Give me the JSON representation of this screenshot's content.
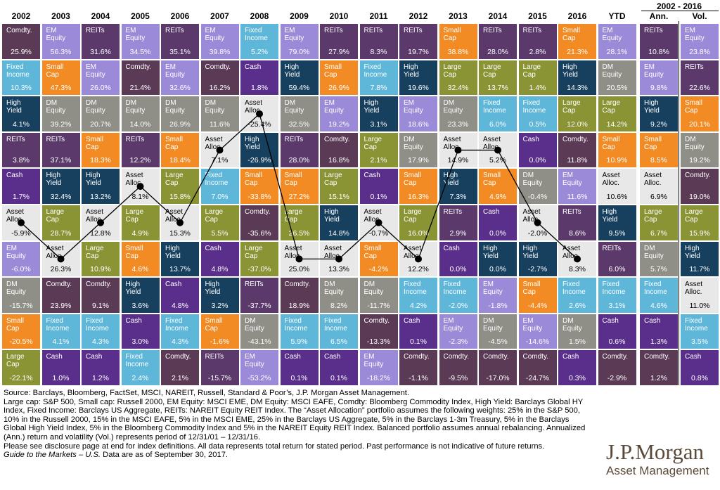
{
  "colors": {
    "Comdty.": "#5b3a55",
    "EM Equity": "#9b8ad8",
    "REITs": "#5b3a6b",
    "Fixed Income": "#5eb6d9",
    "Small Cap": "#f28b24",
    "High Yield": "#17405e",
    "DM Equity": "#8f8f88",
    "Cash": "#5a2f8c",
    "Large Cap": "#8a9435",
    "Asset Alloc.": "#e8e8e8"
  },
  "labels": {
    "Comdty.": "Comdty.",
    "EM Equity": "EM\nEquity",
    "REITs": "REITs",
    "Fixed Income": "Fixed\nIncome",
    "Small Cap": "Small\nCap",
    "High Yield": "High\nYield",
    "DM Equity": "DM\nEquity",
    "Cash": "Cash",
    "Large Cap": "Large\nCap",
    "Asset Alloc.": "Asset\nAlloc."
  },
  "header": {
    "range_label": "2002 - 2016",
    "columns": [
      "2002",
      "2003",
      "2004",
      "2005",
      "2006",
      "2007",
      "2008",
      "2009",
      "2010",
      "2011",
      "2012",
      "2013",
      "2014",
      "2015",
      "2016",
      "YTD",
      "Ann.",
      "Vol."
    ]
  },
  "chart_data": {
    "type": "table",
    "title": "",
    "columns": [
      "2002",
      "2003",
      "2004",
      "2005",
      "2006",
      "2007",
      "2008",
      "2009",
      "2010",
      "2011",
      "2012",
      "2013",
      "2014",
      "2015",
      "2016",
      "YTD",
      "Ann.",
      "Vol."
    ],
    "cells": [
      [
        [
          "Comdty.",
          "25.9%"
        ],
        [
          "Fixed Income",
          "10.3%"
        ],
        [
          "High Yield",
          "4.1%"
        ],
        [
          "REITs",
          "3.8%"
        ],
        [
          "Cash",
          "1.7%"
        ],
        [
          "Asset Alloc.",
          "-5.9%"
        ],
        [
          "EM Equity",
          "-6.0%"
        ],
        [
          "DM Equity",
          "-15.7%"
        ],
        [
          "Small Cap",
          "-20.5%"
        ],
        [
          "Large Cap",
          "-22.1%"
        ]
      ],
      [
        [
          "EM Equity",
          "56.3%"
        ],
        [
          "Small Cap",
          "47.3%"
        ],
        [
          "DM Equity",
          "39.2%"
        ],
        [
          "REITs",
          "37.1%"
        ],
        [
          "High Yield",
          "32.4%"
        ],
        [
          "Large Cap",
          "28.7%"
        ],
        [
          "Asset Alloc.",
          "26.3%"
        ],
        [
          "Comdty.",
          "23.9%"
        ],
        [
          "Fixed Income",
          "4.1%"
        ],
        [
          "Cash",
          "1.0%"
        ]
      ],
      [
        [
          "REITs",
          "31.6%"
        ],
        [
          "EM Equity",
          "26.0%"
        ],
        [
          "DM Equity",
          "20.7%"
        ],
        [
          "Small Cap",
          "18.3%"
        ],
        [
          "High Yield",
          "13.2%"
        ],
        [
          "Asset Alloc.",
          "12.8%"
        ],
        [
          "Large Cap",
          "10.9%"
        ],
        [
          "Comdty.",
          "9.1%"
        ],
        [
          "Fixed Income",
          "4.3%"
        ],
        [
          "Cash",
          "1.2%"
        ]
      ],
      [
        [
          "EM Equity",
          "34.5%"
        ],
        [
          "Comdty.",
          "21.4%"
        ],
        [
          "DM Equity",
          "14.0%"
        ],
        [
          "REITs",
          "12.2%"
        ],
        [
          "Asset Alloc.",
          "8.1%"
        ],
        [
          "Large Cap",
          "4.9%"
        ],
        [
          "Small Cap",
          "4.6%"
        ],
        [
          "High Yield",
          "3.6%"
        ],
        [
          "Cash",
          "3.0%"
        ],
        [
          "Fixed Income",
          "2.4%"
        ]
      ],
      [
        [
          "REITs",
          "35.1%"
        ],
        [
          "EM Equity",
          "32.6%"
        ],
        [
          "DM Equity",
          "26.9%"
        ],
        [
          "Small Cap",
          "18.4%"
        ],
        [
          "Large Cap",
          "15.8%"
        ],
        [
          "Asset Alloc.",
          "15.3%"
        ],
        [
          "High Yield",
          "13.7%"
        ],
        [
          "Cash",
          "4.8%"
        ],
        [
          "Fixed Income",
          "4.3%"
        ],
        [
          "Comdty.",
          "2.1%"
        ]
      ],
      [
        [
          "EM Equity",
          "39.8%"
        ],
        [
          "Comdty.",
          "16.2%"
        ],
        [
          "DM Equity",
          "11.6%"
        ],
        [
          "Asset Alloc.",
          "7.1%"
        ],
        [
          "Fixed Income",
          "7.0%"
        ],
        [
          "Large Cap",
          "5.5%"
        ],
        [
          "Cash",
          "4.8%"
        ],
        [
          "High Yield",
          "3.2%"
        ],
        [
          "Small Cap",
          "-1.6%"
        ],
        [
          "REITs",
          "-15.7%"
        ]
      ],
      [
        [
          "Fixed Income",
          "5.2%"
        ],
        [
          "Cash",
          "1.8%"
        ],
        [
          "Asset Alloc.",
          "-25.4%"
        ],
        [
          "High Yield",
          "-26.9%"
        ],
        [
          "Small Cap",
          "-33.8%"
        ],
        [
          "Comdty.",
          "-35.6%"
        ],
        [
          "Large Cap",
          "-37.0%"
        ],
        [
          "REITs",
          "-37.7%"
        ],
        [
          "DM Equity",
          "-43.1%"
        ],
        [
          "EM Equity",
          "-53.2%"
        ]
      ],
      [
        [
          "EM Equity",
          "79.0%"
        ],
        [
          "High Yield",
          "59.4%"
        ],
        [
          "DM Equity",
          "32.5%"
        ],
        [
          "REITs",
          "28.0%"
        ],
        [
          "Small Cap",
          "27.2%"
        ],
        [
          "Large Cap",
          "26.5%"
        ],
        [
          "Asset Alloc.",
          "25.0%"
        ],
        [
          "Comdty.",
          "18.9%"
        ],
        [
          "Fixed Income",
          "5.9%"
        ],
        [
          "Cash",
          "0.1%"
        ]
      ],
      [
        [
          "REITs",
          "27.9%"
        ],
        [
          "Small Cap",
          "26.9%"
        ],
        [
          "EM Equity",
          "19.2%"
        ],
        [
          "Comdty.",
          "16.8%"
        ],
        [
          "Large Cap",
          "15.1%"
        ],
        [
          "High Yield",
          "14.8%"
        ],
        [
          "Asset Alloc.",
          "13.3%"
        ],
        [
          "DM Equity",
          "8.2%"
        ],
        [
          "Fixed Income",
          "6.5%"
        ],
        [
          "Cash",
          "0.1%"
        ]
      ],
      [
        [
          "REITs",
          "8.3%"
        ],
        [
          "Fixed Income",
          "7.8%"
        ],
        [
          "High Yield",
          "3.1%"
        ],
        [
          "Large Cap",
          "2.1%"
        ],
        [
          "Cash",
          "0.1%"
        ],
        [
          "Asset Alloc.",
          "-0.7%"
        ],
        [
          "Small Cap",
          "-4.2%"
        ],
        [
          "DM Equity",
          "-11.7%"
        ],
        [
          "Comdty.",
          "-13.3%"
        ],
        [
          "EM Equity",
          "-18.2%"
        ]
      ],
      [
        [
          "REITs",
          "19.7%"
        ],
        [
          "High Yield",
          "19.6%"
        ],
        [
          "EM Equity",
          "18.6%"
        ],
        [
          "DM Equity",
          "17.9%"
        ],
        [
          "Small Cap",
          "16.3%"
        ],
        [
          "Large Cap",
          "16.0%"
        ],
        [
          "Asset Alloc.",
          "12.2%"
        ],
        [
          "Fixed Income",
          "4.2%"
        ],
        [
          "Cash",
          "0.1%"
        ],
        [
          "Comdty.",
          "-1.1%"
        ]
      ],
      [
        [
          "Small Cap",
          "38.8%"
        ],
        [
          "Large Cap",
          "32.4%"
        ],
        [
          "DM Equity",
          "23.3%"
        ],
        [
          "Asset Alloc.",
          "14.9%"
        ],
        [
          "High Yield",
          "7.3%"
        ],
        [
          "REITs",
          "2.9%"
        ],
        [
          "Cash",
          "0.0%"
        ],
        [
          "Fixed Income",
          "-2.0%"
        ],
        [
          "EM Equity",
          "-2.3%"
        ],
        [
          "Comdty.",
          "-9.5%"
        ]
      ],
      [
        [
          "REITs",
          "28.0%"
        ],
        [
          "Large Cap",
          "13.7%"
        ],
        [
          "Fixed Income",
          "6.0%"
        ],
        [
          "Asset Alloc.",
          "5.2%"
        ],
        [
          "Small Cap",
          "4.9%"
        ],
        [
          "Cash",
          "0.0%"
        ],
        [
          "High Yield",
          "0.0%"
        ],
        [
          "EM Equity",
          "-1.8%"
        ],
        [
          "DM Equity",
          "-4.5%"
        ],
        [
          "Comdty.",
          "-17.0%"
        ]
      ],
      [
        [
          "REITs",
          "2.8%"
        ],
        [
          "Large Cap",
          "1.4%"
        ],
        [
          "Fixed Income",
          "0.5%"
        ],
        [
          "Cash",
          "0.0%"
        ],
        [
          "DM Equity",
          "-0.4%"
        ],
        [
          "Asset Alloc.",
          "-2.0%"
        ],
        [
          "High Yield",
          "-2.7%"
        ],
        [
          "Small Cap",
          "-4.4%"
        ],
        [
          "EM Equity",
          "-14.6%"
        ],
        [
          "Comdty.",
          "-24.7%"
        ]
      ],
      [
        [
          "Small Cap",
          "21.3%"
        ],
        [
          "High Yield",
          "14.3%"
        ],
        [
          "Large Cap",
          "12.0%"
        ],
        [
          "Comdty.",
          "11.8%"
        ],
        [
          "EM Equity",
          "11.6%"
        ],
        [
          "REITs",
          "8.6%"
        ],
        [
          "Asset Alloc.",
          "8.3%"
        ],
        [
          "Fixed Income",
          "2.6%"
        ],
        [
          "DM Equity",
          "1.5%"
        ],
        [
          "Cash",
          "0.3%"
        ]
      ],
      [
        [
          "EM Equity",
          "28.1%"
        ],
        [
          "DM Equity",
          "20.5%"
        ],
        [
          "Large Cap",
          "14.2%"
        ],
        [
          "Small Cap",
          "10.9%"
        ],
        [
          "Asset Alloc.",
          "10.6%"
        ],
        [
          "High Yield",
          "9.5%"
        ],
        [
          "REITs",
          "6.0%"
        ],
        [
          "Fixed Income",
          "3.1%"
        ],
        [
          "Cash",
          "0.6%"
        ],
        [
          "Comdty.",
          "-2.9%"
        ]
      ],
      [
        [
          "REITs",
          "10.8%"
        ],
        [
          "EM Equity",
          "9.8%"
        ],
        [
          "High Yield",
          "9.2%"
        ],
        [
          "Small Cap",
          "8.5%"
        ],
        [
          "Asset Alloc.",
          "6.9%"
        ],
        [
          "Large Cap",
          "6.7%"
        ],
        [
          "DM Equity",
          "5.7%"
        ],
        [
          "Fixed Income",
          "4.6%"
        ],
        [
          "Cash",
          "1.3%"
        ],
        [
          "Comdty.",
          "1.2%"
        ]
      ],
      [
        [
          "EM Equity",
          "23.8%"
        ],
        [
          "REITs",
          "22.6%"
        ],
        [
          "Small Cap",
          "20.1%"
        ],
        [
          "DM Equity",
          "19.2%"
        ],
        [
          "Comdty.",
          "19.0%"
        ],
        [
          "Large Cap",
          "15.9%"
        ],
        [
          "High Yield",
          "11.7%"
        ],
        [
          "Asset Alloc.",
          "11.0%"
        ],
        [
          "Fixed Income",
          "3.5%"
        ],
        [
          "Cash",
          "0.8%"
        ]
      ]
    ],
    "line_series": {
      "asset": "Asset Alloc.",
      "x": [
        "2002",
        "2003",
        "2004",
        "2005",
        "2006",
        "2007",
        "2008",
        "2009",
        "2010",
        "2011",
        "2012",
        "2013",
        "2014",
        "2015",
        "2016"
      ],
      "rank": [
        6,
        7,
        6,
        5,
        6,
        4,
        3,
        7,
        7,
        6,
        7,
        4,
        4,
        6,
        7
      ]
    }
  },
  "footer": {
    "line1": "Source: Barclays, Bloomberg, FactSet, MSCI, NAREIT, Russell, Standard & Poor’s, J.P. Morgan Asset Management.",
    "line2": "Large cap: S&P 500, Small cap: Russell 2000, EM Equity: MSCI EME, DM Equity: MSCI EAFE, Comdty: Bloomberg Commodity Index, High Yield: Barclays Global HY Index, Fixed Income: Barclays US Aggregate, REITs: NAREIT Equity REIT Index. The “Asset Allocation” portfolio assumes the following weights: 25% in the S&P 500, 10% in the Russell 2000, 15% in the MSCI EAFE, 5% in the MSCI EME, 25% in the Barclays US Aggregate, 5% in the Barclays 1-3m Treasury, 5% in the Barclays Global High Yield Index, 5% in the Bloomberg Commodity Index and 5% in the NAREIT Equity REIT Index. Balanced portfolio assumes annual rebalancing. Annualized (Ann.) return and volatility (Vol.) represents period of 12/31/01 – 12/31/16.",
    "line3": "Please see disclosure page at end for index definitions. All data represents total return for stated period. Past performance is not indicative of future returns.",
    "guide_italic": "Guide to the Markets – U.S.",
    "guide_rest": " Data are as of September 30, 2017."
  },
  "logo": {
    "line1": "J.P.Morgan",
    "line2": "Asset Management"
  }
}
